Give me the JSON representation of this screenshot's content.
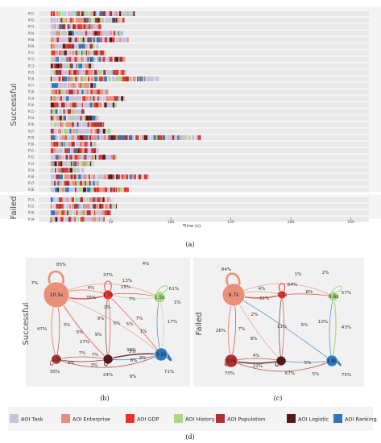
{
  "timeline": {
    "xlabel": "Time (s)",
    "ticks": [
      0,
      50,
      100,
      150,
      200,
      250
    ],
    "xlim": [
      -10,
      265
    ],
    "groups": [
      {
        "name": "Successful",
        "participants": [
          "P01",
          "P02",
          "P03",
          "P04",
          "P08",
          "P09",
          "P11",
          "P12",
          "P13",
          "P15",
          "P16",
          "P17",
          "P18",
          "P19",
          "P20",
          "P21",
          "P24",
          "P26",
          "P27",
          "P29",
          "P30",
          "P31",
          "P32",
          "P33",
          "P34",
          "P36",
          "P37",
          "P38"
        ],
        "durations": [
          70,
          62,
          42,
          60,
          65,
          40,
          46,
          62,
          36,
          63,
          90,
          38,
          48,
          62,
          55,
          28,
          40,
          45,
          50,
          125,
          38,
          40,
          55,
          36,
          28,
          82,
          40,
          65
        ]
      },
      {
        "name": "Failed",
        "participants": [
          "P14",
          "P22",
          "P28",
          "P39"
        ],
        "durations": [
          52,
          55,
          50,
          45
        ]
      }
    ]
  },
  "captions": {
    "a": "(a)",
    "b": "(b)",
    "c": "(c)",
    "d": "(d)"
  },
  "graphs": [
    {
      "name": "Successful",
      "nodes": [
        {
          "id": "enterprise",
          "label": "10.5s",
          "self": "85%"
        },
        {
          "id": "gdp",
          "label": "1.7s",
          "self": "37%"
        },
        {
          "id": "history",
          "label": "1.5s",
          "self": "61%"
        },
        {
          "id": "population",
          "label": "1.5s",
          "self": "30%"
        },
        {
          "id": "logistic",
          "label": "1.5s",
          "self": "24%"
        },
        {
          "id": "ranking",
          "label": "3.2s",
          "self": "71%"
        }
      ],
      "edge_labels": [
        "4%",
        "7%",
        "4%",
        "13%",
        "15%",
        "35%",
        "7%",
        "1%",
        "47%",
        "3%",
        "9%",
        "5%",
        "5%",
        "5%",
        "7%",
        "9%",
        "17%",
        "27%",
        "1%",
        "7%",
        "3%",
        "3%",
        "7%",
        "3%",
        "3%",
        "36%",
        "8%",
        "9%",
        "1%"
      ]
    },
    {
      "name": "Failed",
      "nodes": [
        {
          "id": "enterprise",
          "label": "8.7s",
          "self": "84%"
        },
        {
          "id": "gdp",
          "label": "1.7s",
          "self": "64%"
        },
        {
          "id": "history",
          "label": "0.6s",
          "self": "57%"
        },
        {
          "id": "population",
          "label": "3.0s",
          "self": "70%"
        },
        {
          "id": "logistic",
          "label": "1.6s",
          "self": "67%"
        },
        {
          "id": "ranking",
          "label": "1.8s",
          "self": "75%"
        }
      ],
      "edge_labels": [
        "1%",
        "2%",
        "4%",
        "31%",
        "8%",
        "2%",
        "7%",
        "8%",
        "26%",
        "11%",
        "5%",
        "10%",
        "43%",
        "4%",
        "22%",
        "5%",
        "5%"
      ]
    }
  ],
  "legend": [
    {
      "label": "AOI Task",
      "color": "#c8c2e0"
    },
    {
      "label": "AOI Enterprise",
      "color": "#e8907a"
    },
    {
      "label": "AOI GDP",
      "color": "#e8322a"
    },
    {
      "label": "AOI History",
      "color": "#a8d98a"
    },
    {
      "label": "AOI Population",
      "color": "#b03030"
    },
    {
      "label": "AOI Logistic",
      "color": "#5a1818"
    },
    {
      "label": "AOI Ranking",
      "color": "#2d78bd"
    }
  ],
  "colors": {
    "panel_bg": "#f1f1f1",
    "row_bg": "#e9e9e9",
    "arrow": "#444444"
  }
}
